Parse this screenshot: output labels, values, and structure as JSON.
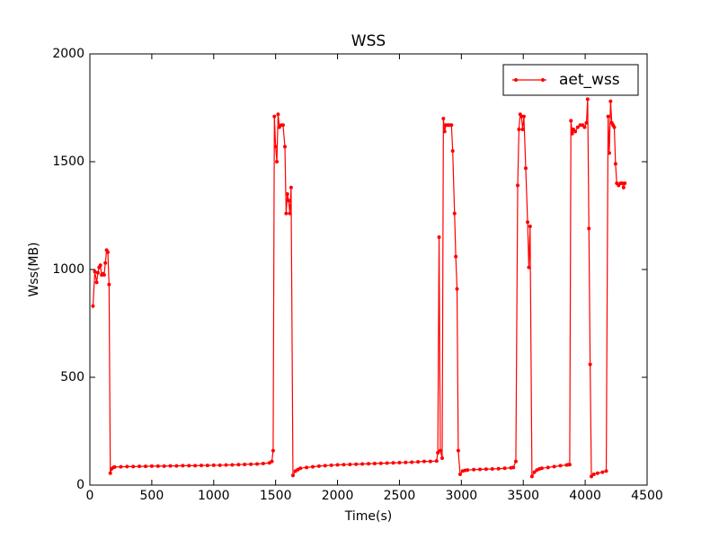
{
  "chart_data": {
    "type": "line",
    "title": "WSS",
    "xlabel": "Time(s)",
    "ylabel": "Wss(MB)",
    "x": [
      25,
      40,
      55,
      65,
      75,
      85,
      95,
      105,
      115,
      125,
      135,
      145,
      155,
      165,
      175,
      190,
      200,
      250,
      300,
      350,
      400,
      450,
      500,
      550,
      600,
      650,
      700,
      750,
      800,
      850,
      900,
      950,
      1000,
      1050,
      1100,
      1150,
      1200,
      1250,
      1300,
      1350,
      1400,
      1450,
      1470,
      1480,
      1490,
      1500,
      1510,
      1520,
      1530,
      1545,
      1560,
      1575,
      1585,
      1595,
      1605,
      1615,
      1625,
      1640,
      1660,
      1680,
      1700,
      1750,
      1800,
      1850,
      1900,
      1950,
      2000,
      2050,
      2100,
      2150,
      2200,
      2250,
      2300,
      2350,
      2400,
      2450,
      2500,
      2550,
      2600,
      2650,
      2700,
      2750,
      2800,
      2810,
      2820,
      2830,
      2845,
      2855,
      2865,
      2875,
      2890,
      2905,
      2920,
      2930,
      2945,
      2955,
      2965,
      2975,
      2990,
      3010,
      3030,
      3050,
      3100,
      3150,
      3200,
      3250,
      3300,
      3350,
      3400,
      3420,
      3440,
      3455,
      3465,
      3475,
      3485,
      3495,
      3505,
      3520,
      3535,
      3545,
      3555,
      3570,
      3590,
      3610,
      3630,
      3650,
      3700,
      3750,
      3800,
      3850,
      3865,
      3875,
      3885,
      3895,
      3905,
      3920,
      3940,
      3960,
      3980,
      3995,
      4010,
      4020,
      4030,
      4040,
      4050,
      4070,
      4100,
      4140,
      4170,
      4185,
      4195,
      4205,
      4215,
      4225,
      4235,
      4245,
      4255,
      4270,
      4285,
      4300,
      4310,
      4320
    ],
    "series": [
      {
        "name": "aet_wss",
        "color": "#ff0000",
        "values": [
          830,
          990,
          940,
          985,
          1010,
          1020,
          975,
          980,
          975,
          1030,
          1090,
          1080,
          930,
          55,
          75,
          82,
          84,
          85,
          86,
          86,
          87,
          87,
          88,
          88,
          88,
          89,
          89,
          90,
          90,
          90,
          91,
          91,
          92,
          92,
          93,
          94,
          95,
          96,
          97,
          98,
          100,
          103,
          110,
          160,
          1710,
          1570,
          1500,
          1720,
          1660,
          1670,
          1670,
          1570,
          1260,
          1350,
          1320,
          1260,
          1380,
          45,
          65,
          72,
          78,
          82,
          85,
          88,
          90,
          92,
          94,
          95,
          96,
          97,
          98,
          99,
          100,
          101,
          102,
          103,
          104,
          105,
          106,
          108,
          110,
          110,
          112,
          150,
          1150,
          160,
          125,
          1700,
          1640,
          1670,
          1670,
          1670,
          1670,
          1550,
          1260,
          1060,
          910,
          160,
          50,
          65,
          68,
          70,
          72,
          73,
          74,
          75,
          76,
          78,
          80,
          82,
          110,
          1390,
          1650,
          1720,
          1710,
          1650,
          1710,
          1470,
          1220,
          1010,
          1200,
          40,
          60,
          70,
          75,
          78,
          82,
          86,
          90,
          93,
          95,
          95,
          1690,
          1630,
          1650,
          1640,
          1660,
          1670,
          1670,
          1660,
          1680,
          1790,
          1190,
          560,
          40,
          50,
          55,
          60,
          65,
          1710,
          1540,
          1780,
          1680,
          1670,
          1660,
          1490,
          1400,
          1390,
          1400,
          1400,
          1380,
          1400
        ]
      }
    ],
    "xlim": [
      0,
      4500
    ],
    "xticks": [
      0,
      500,
      1000,
      1500,
      2000,
      2500,
      3000,
      3500,
      4000,
      4500
    ],
    "ylim": [
      0,
      2000
    ],
    "yticks": [
      0,
      500,
      1000,
      1500,
      2000
    ],
    "legend": "upper right"
  }
}
